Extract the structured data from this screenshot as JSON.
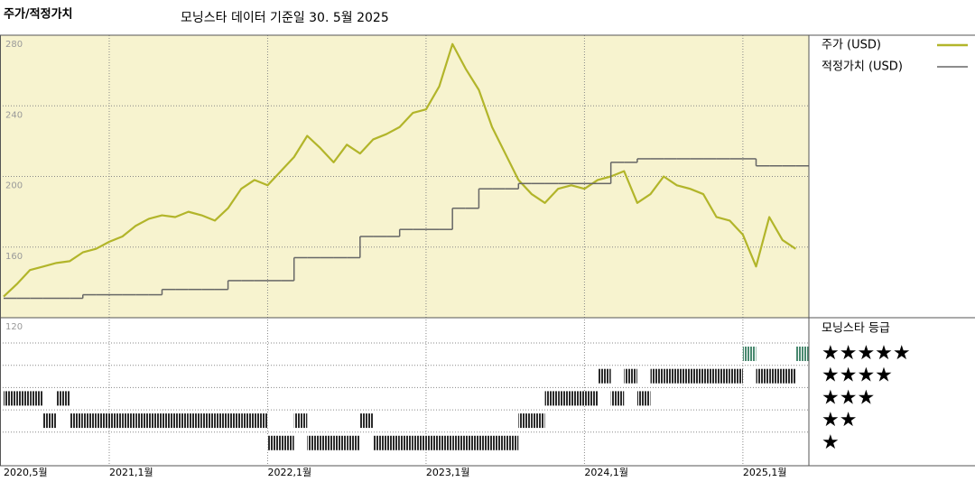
{
  "chart_data": {
    "type": "line",
    "title": "주가/적정가치",
    "subtitle": "모닝스타 데이터 기준일 30. 5월 2025",
    "x": [
      "2020-05",
      "2020-06",
      "2020-07",
      "2020-08",
      "2020-09",
      "2020-10",
      "2020-11",
      "2020-12",
      "2021-01",
      "2021-02",
      "2021-03",
      "2021-04",
      "2021-05",
      "2021-06",
      "2021-07",
      "2021-08",
      "2021-09",
      "2021-10",
      "2021-11",
      "2021-12",
      "2022-01",
      "2022-02",
      "2022-03",
      "2022-04",
      "2022-05",
      "2022-06",
      "2022-07",
      "2022-08",
      "2022-09",
      "2022-10",
      "2022-11",
      "2022-12",
      "2023-01",
      "2023-02",
      "2023-03",
      "2023-04",
      "2023-05",
      "2023-06",
      "2023-07",
      "2023-08",
      "2023-09",
      "2023-10",
      "2023-11",
      "2023-12",
      "2024-01",
      "2024-02",
      "2024-03",
      "2024-04",
      "2024-05",
      "2024-06",
      "2024-07",
      "2024-08",
      "2024-09",
      "2024-10",
      "2024-11",
      "2024-12",
      "2025-01",
      "2025-02",
      "2025-03",
      "2025-04",
      "2025-05"
    ],
    "xlim": [
      "2020-05",
      "2025-06"
    ],
    "xticks": [
      {
        "value": "2020-05",
        "label": "2020,5월"
      },
      {
        "value": "2021-01",
        "label": "2021,1월"
      },
      {
        "value": "2022-01",
        "label": "2022,1월"
      },
      {
        "value": "2023-01",
        "label": "2023,1월"
      },
      {
        "value": "2024-01",
        "label": "2024,1월"
      },
      {
        "value": "2025-01",
        "label": "2025,1월"
      }
    ],
    "ylim": [
      120,
      280
    ],
    "yticks": [
      120,
      160,
      200,
      240,
      280
    ],
    "grid": true,
    "series": [
      {
        "name": "주가 (USD)",
        "color": "#b2b52a",
        "values": [
          132,
          139,
          147,
          149,
          151,
          152,
          157,
          159,
          163,
          166,
          172,
          176,
          178,
          177,
          180,
          178,
          175,
          182,
          193,
          198,
          195,
          203,
          211,
          223,
          216,
          208,
          218,
          213,
          221,
          224,
          228,
          236,
          238,
          251,
          275,
          261,
          249,
          228,
          213,
          198,
          190,
          185,
          193,
          195,
          193,
          198,
          200,
          203,
          185,
          190,
          200,
          195,
          193,
          190,
          177,
          175,
          167,
          149,
          177,
          164,
          159
        ]
      },
      {
        "name": "적정가치 (USD)",
        "color": "#666666",
        "step": true,
        "values": [
          131,
          131,
          131,
          131,
          131,
          131,
          133,
          133,
          133,
          133,
          133,
          133,
          136,
          136,
          136,
          136,
          136,
          141,
          141,
          141,
          141,
          141,
          154,
          154,
          154,
          154,
          154,
          166,
          166,
          166,
          170,
          170,
          170,
          170,
          182,
          182,
          193,
          193,
          193,
          196,
          196,
          196,
          196,
          196,
          196,
          196,
          208,
          208,
          210,
          210,
          210,
          210,
          210,
          210,
          210,
          210,
          210,
          206,
          206,
          206,
          206
        ]
      }
    ],
    "ratings": {
      "name": "모닝스타 등급",
      "levels": [
        "★★★★★",
        "★★★★",
        "★★★",
        "★★",
        "★"
      ],
      "five_color": "#4a8a70",
      "color": "#333333",
      "values": [
        3,
        3,
        3,
        2,
        3,
        2,
        2,
        2,
        2,
        2,
        2,
        2,
        2,
        2,
        2,
        2,
        2,
        2,
        2,
        2,
        1,
        1,
        2,
        1,
        1,
        1,
        1,
        2,
        1,
        1,
        1,
        1,
        1,
        1,
        1,
        1,
        1,
        1,
        1,
        2,
        2,
        3,
        3,
        3,
        3,
        4,
        3,
        4,
        3,
        4,
        4,
        4,
        4,
        4,
        4,
        4,
        5,
        4,
        4,
        4,
        5
      ]
    }
  }
}
